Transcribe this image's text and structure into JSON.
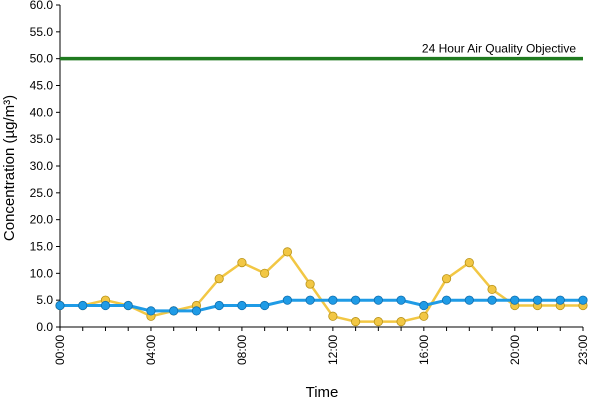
{
  "chart_data": {
    "type": "line",
    "title": "",
    "xlabel": "Time",
    "ylabel": "Concentration (µg/m³)",
    "ylim": [
      0,
      60
    ],
    "yticks": [
      "0.0",
      "5.0",
      "10.0",
      "15.0",
      "20.0",
      "25.0",
      "30.0",
      "35.0",
      "40.0",
      "45.0",
      "50.0",
      "55.0",
      "60.0"
    ],
    "xticks": [
      "00:00",
      "04:00",
      "08:00",
      "12:00",
      "16:00",
      "20:00",
      "23:00"
    ],
    "x": [
      "00:00",
      "01:00",
      "02:00",
      "03:00",
      "04:00",
      "05:00",
      "06:00",
      "07:00",
      "08:00",
      "09:00",
      "10:00",
      "11:00",
      "12:00",
      "13:00",
      "14:00",
      "15:00",
      "16:00",
      "17:00",
      "18:00",
      "19:00",
      "20:00",
      "21:00",
      "22:00",
      "23:00"
    ],
    "grid": false,
    "legend": "none",
    "series": [
      {
        "color": "#f2c744",
        "values": [
          4,
          4,
          5,
          4,
          2,
          3,
          4,
          9,
          12,
          10,
          14,
          8,
          2,
          1,
          1,
          1,
          2,
          9,
          12,
          7,
          4,
          4,
          4,
          4
        ]
      },
      {
        "color": "#1f9be6",
        "values": [
          4,
          4,
          4,
          4,
          3,
          3,
          3,
          4,
          4,
          4,
          5,
          5,
          5,
          5,
          5,
          5,
          4,
          5,
          5,
          5,
          5,
          5,
          5,
          5
        ]
      }
    ],
    "objective": {
      "value": 50,
      "label": "24 Hour Air Quality Objective",
      "color": "#1f7a1f"
    }
  }
}
